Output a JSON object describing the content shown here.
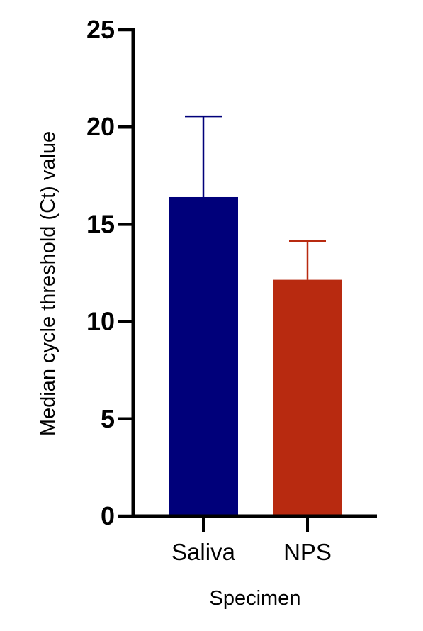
{
  "chart_data": {
    "type": "bar",
    "categories": [
      "Saliva",
      "NPS"
    ],
    "values": [
      16.4,
      12.15
    ],
    "error_upper": [
      20.55,
      14.15
    ],
    "colors": [
      "#00007a",
      "#b82a10"
    ],
    "xlabel": "Specimen",
    "ylabel": "Median cycle threshold (Ct) value",
    "ylim": [
      0,
      25
    ],
    "yticks": [
      "0",
      "5",
      "10",
      "15",
      "20",
      "25"
    ],
    "grid": false
  }
}
